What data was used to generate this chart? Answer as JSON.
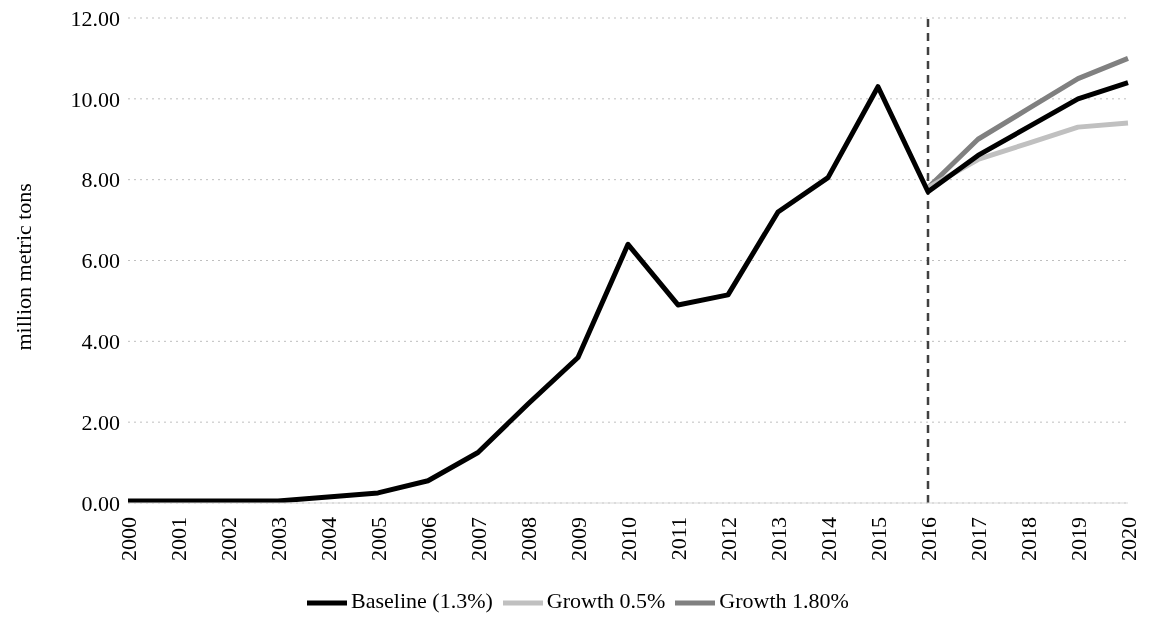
{
  "chart_data": {
    "type": "line",
    "ylabel": "million metric tons",
    "categories": [
      "2000",
      "2001",
      "2002",
      "2003",
      "2004",
      "2005",
      "2006",
      "2007",
      "2008",
      "2009",
      "2010",
      "2011",
      "2012",
      "2013",
      "2014",
      "2015",
      "2016",
      "2017",
      "2018",
      "2019",
      "2020"
    ],
    "series": [
      {
        "name": "Growth 1.80%",
        "color": "#808080",
        "values": [
          null,
          null,
          null,
          null,
          null,
          null,
          null,
          null,
          null,
          null,
          null,
          null,
          null,
          null,
          null,
          null,
          7.8,
          9.0,
          9.75,
          10.5,
          11.0
        ]
      },
      {
        "name": "Growth 0.5%",
        "color": "#c0c0c0",
        "values": [
          null,
          null,
          null,
          null,
          null,
          null,
          null,
          null,
          null,
          null,
          null,
          null,
          null,
          null,
          null,
          null,
          7.8,
          8.5,
          8.9,
          9.3,
          9.4
        ]
      },
      {
        "name": "Baseline (1.3%)",
        "color": "#000000",
        "values": [
          0.05,
          0.05,
          0.05,
          0.05,
          0.15,
          0.25,
          0.55,
          1.25,
          2.45,
          3.6,
          6.4,
          4.9,
          5.15,
          7.2,
          8.05,
          10.3,
          7.7,
          8.6,
          9.3,
          10.0,
          10.4
        ]
      }
    ],
    "ylim": [
      0,
      12
    ],
    "yticks": [
      {
        "value": 0,
        "label": "0.00"
      },
      {
        "value": 2,
        "label": "2.00"
      },
      {
        "value": 4,
        "label": "4.00"
      },
      {
        "value": 6,
        "label": "6.00"
      },
      {
        "value": 8,
        "label": "8.00"
      },
      {
        "value": 10,
        "label": "10.00"
      },
      {
        "value": 12,
        "label": "12.00"
      }
    ],
    "ref_lines": [
      {
        "axis": "x",
        "value": "2016",
        "color": "#404040",
        "line_style": "dashed"
      }
    ],
    "grid": "y",
    "legend": "bottom",
    "marker": "none",
    "line_style": "solid"
  }
}
